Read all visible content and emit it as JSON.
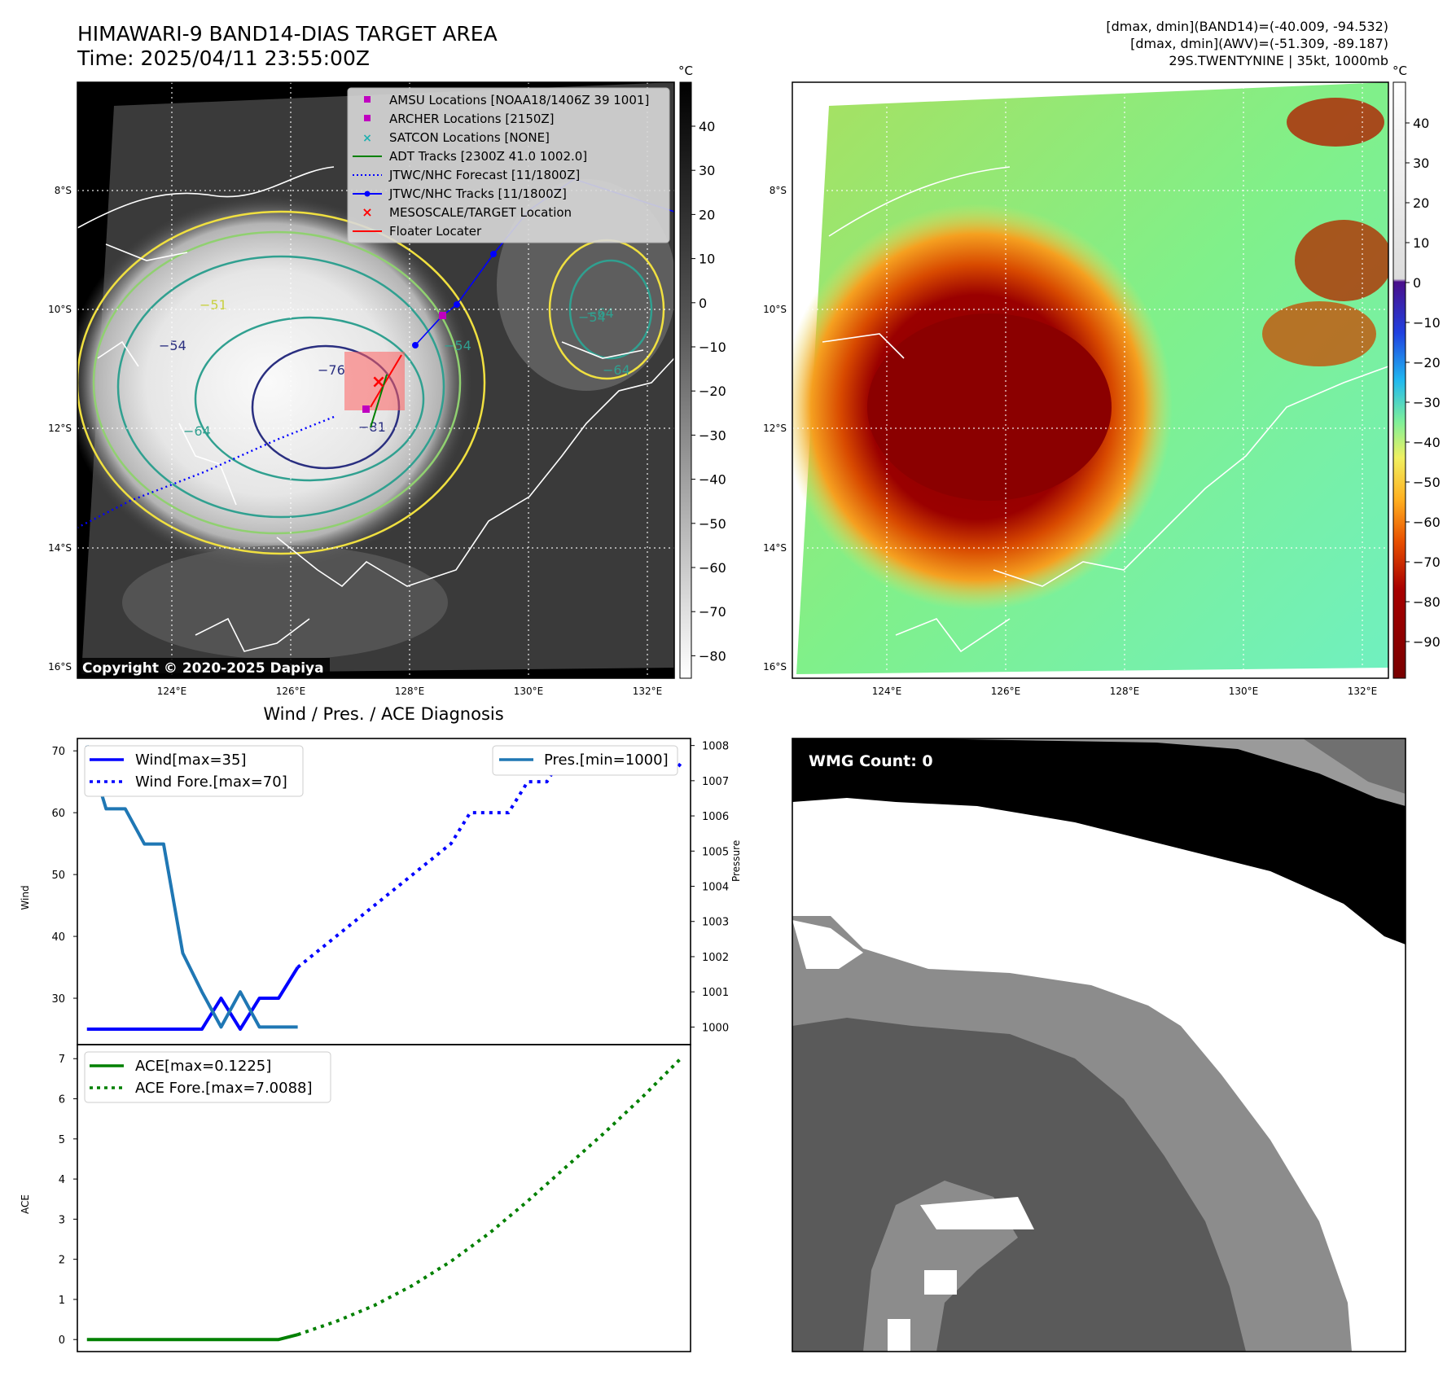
{
  "header": {
    "title_line1": "HIMAWARI-9 BAND14-DIAS TARGET AREA",
    "title_line2": "Time: 2025/04/11 23:55:00Z",
    "info_line1": "[dmax, dmin](BAND14)=(-40.009, -94.532)",
    "info_line2": "[dmax, dmin](AWV)=(-51.309, -89.187)",
    "info_line3": "29S.TWENTYNINE | 35kt, 1000mb"
  },
  "map_axes": {
    "lat_labels": [
      "8°S",
      "10°S",
      "12°S",
      "14°S",
      "16°S"
    ],
    "lon_labels": [
      "124°E",
      "126°E",
      "128°E",
      "130°E",
      "132°E"
    ]
  },
  "ir_panel": {
    "colorbar_unit": "°C",
    "colorbar_ticks": [
      "40",
      "30",
      "20",
      "10",
      "0",
      "−10",
      "−20",
      "−30",
      "−40",
      "−50",
      "−60",
      "−70",
      "−80"
    ],
    "contour_labels": [
      "−76",
      "−54",
      "−64",
      "−81",
      "−54",
      "−51",
      "−64",
      "−54",
      "−64"
    ],
    "legend": [
      {
        "label": "AMSU Locations [NOAA18/1406Z 39 1001]",
        "marker": "square",
        "color": "#c000c0"
      },
      {
        "label": "ARCHER Locations [2150Z]",
        "marker": "square",
        "color": "#c000c0"
      },
      {
        "label": "SATCON Locations [NONE]",
        "marker": "x",
        "color": "#20b0b0"
      },
      {
        "label": "ADT Tracks [2300Z 41.0 1002.0]",
        "marker": "line",
        "color": "#008000"
      },
      {
        "label": "JTWC/NHC Forecast [11/1800Z]",
        "marker": "dotted",
        "color": "#0000ff"
      },
      {
        "label": "JTWC/NHC Tracks [11/1800Z]",
        "marker": "line-dot",
        "color": "#0000ff"
      },
      {
        "label": "MESOSCALE/TARGET Location",
        "marker": "x",
        "color": "#ff0000"
      },
      {
        "label": "Floater Locater",
        "marker": "line",
        "color": "#ff0000"
      }
    ],
    "copyright": "Copyright © 2020-2025 Dapiya"
  },
  "awv_panel": {
    "colorbar_unit": "°C",
    "colorbar_ticks": [
      "40",
      "30",
      "20",
      "10",
      "0",
      "−10",
      "−20",
      "−30",
      "−40",
      "−50",
      "−60",
      "−70",
      "−80",
      "−90"
    ]
  },
  "wmg_panel": {
    "label": "WMG Count: 0"
  },
  "chart_data": [
    {
      "type": "line",
      "title": "Wind / Pres. / ACE Diagnosis",
      "ylabel": "Wind",
      "ylabel_right": "Pressure",
      "ylim": [
        22.5,
        72
      ],
      "ylim_right": [
        999.5,
        1008.2
      ],
      "yticks": [
        30,
        40,
        50,
        60,
        70
      ],
      "yticks_right": [
        1000,
        1001,
        1002,
        1003,
        1004,
        1005,
        1006,
        1007,
        1008
      ],
      "xlim": [
        -0.5,
        31.5
      ],
      "series": [
        {
          "name": "Wind[max=35]",
          "color": "#0000ff",
          "style": "solid",
          "axis": "left",
          "x": [
            0,
            1,
            2,
            3,
            4,
            5,
            6,
            7,
            8,
            9,
            10,
            11
          ],
          "y": [
            25,
            25,
            25,
            25,
            25,
            25,
            25,
            30,
            25,
            30,
            30,
            35
          ]
        },
        {
          "name": "Wind Fore.[max=70]",
          "color": "#0000ff",
          "style": "dotted",
          "axis": "left",
          "x": [
            11,
            13,
            15,
            17,
            19,
            20,
            21,
            22,
            23,
            24,
            25,
            26,
            27,
            28,
            29,
            30,
            31
          ],
          "y": [
            35,
            40,
            45,
            50,
            55,
            60,
            60,
            60,
            65,
            65,
            70,
            70,
            70,
            70,
            70,
            70,
            67.5
          ]
        },
        {
          "name": "Pres.[min=1000]",
          "color": "#1f77b4",
          "style": "solid",
          "axis": "right",
          "x": [
            0,
            1,
            2,
            3,
            4,
            5,
            6,
            7,
            8,
            9,
            10,
            11
          ],
          "y": [
            1008,
            1006.2,
            1006.2,
            1005.2,
            1005.2,
            1002.1,
            1001,
            1000,
            1001,
            1000,
            1000,
            1000
          ]
        }
      ]
    },
    {
      "type": "line",
      "ylabel": "ACE",
      "ylim": [
        -0.3,
        7.35
      ],
      "yticks": [
        0,
        1,
        2,
        3,
        4,
        5,
        6,
        7
      ],
      "xlim": [
        -0.5,
        31.5
      ],
      "series": [
        {
          "name": "ACE[max=0.1225]",
          "color": "#008000",
          "style": "solid",
          "x": [
            0,
            1,
            2,
            3,
            4,
            5,
            6,
            7,
            8,
            9,
            10,
            11
          ],
          "y": [
            0,
            0,
            0,
            0,
            0,
            0,
            0,
            0,
            0,
            0,
            0,
            0.1225
          ]
        },
        {
          "name": "ACE Fore.[max=7.0088]",
          "color": "#008000",
          "style": "dotted",
          "x": [
            11,
            13,
            15,
            17,
            19,
            21,
            23,
            25,
            27,
            29,
            31
          ],
          "y": [
            0.1225,
            0.45,
            0.85,
            1.35,
            1.95,
            2.65,
            3.45,
            4.3,
            5.15,
            6.05,
            7.0088
          ]
        }
      ]
    }
  ]
}
